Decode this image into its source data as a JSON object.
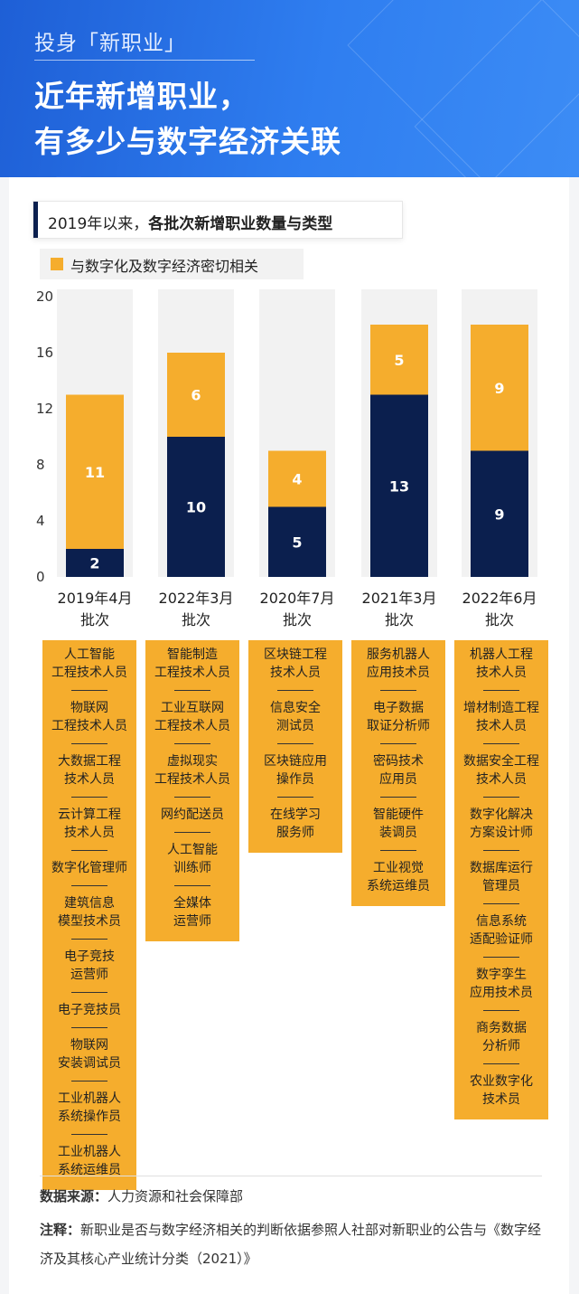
{
  "header": {
    "kicker": "投身「新职业」",
    "title_line1": "近年新增职业，",
    "title_line2": "有多少与数字经济关联"
  },
  "subtitle": {
    "prefix": "2019年以来，",
    "bold": "各批次新增职业数量与类型"
  },
  "legend": {
    "label": "与数字化及数字经济密切相关",
    "color": "#f5ad2d"
  },
  "colors": {
    "digital": "#f5ad2d",
    "other": "#0b1f4e",
    "background_bar": "#f2f2f2",
    "header_blue": "#2a6ee8"
  },
  "chart_data": {
    "type": "bar",
    "stacked": true,
    "categories": [
      "2019年4月\n批次",
      "2022年3月\n批次",
      "2020年7月\n批次",
      "2021年3月\n批次",
      "2022年6月\n批次"
    ],
    "series": [
      {
        "color": "#0b1f4e",
        "values": [
          2,
          10,
          5,
          13,
          9
        ]
      },
      {
        "name": "与数字化及数字经济密切相关",
        "color": "#f5ad2d",
        "values": [
          11,
          6,
          4,
          5,
          9
        ]
      }
    ],
    "ylim": [
      0,
      20
    ],
    "yticks": [
      0,
      4,
      8,
      12,
      16,
      20
    ],
    "grid": false,
    "legend_position": "top-left"
  },
  "occupations": [
    [
      "人工智能\n工程技术人员",
      "物联网\n工程技术人员",
      "大数据工程\n技术人员",
      "云计算工程\n技术人员",
      "数字化管理师",
      "建筑信息\n模型技术员",
      "电子竞技\n运营师",
      "电子竞技员",
      "物联网\n安装调试员",
      "工业机器人\n系统操作员",
      "工业机器人\n系统运维员"
    ],
    [
      "智能制造\n工程技术人员",
      "工业互联网\n工程技术人员",
      "虚拟现实\n工程技术人员",
      "网约配送员",
      "人工智能\n训练师",
      "全媒体\n运营师"
    ],
    [
      "区块链工程\n技术人员",
      "信息安全\n测试员",
      "区块链应用\n操作员",
      "在线学习\n服务师"
    ],
    [
      "服务机器人\n应用技术员",
      "电子数据\n取证分析师",
      "密码技术\n应用员",
      "智能硬件\n装调员",
      "工业视觉\n系统运维员"
    ],
    [
      "机器人工程\n技术人员",
      "增材制造工程\n技术人员",
      "数据安全工程\n技术人员",
      "数字化解决\n方案设计师",
      "数据库运行\n管理员",
      "信息系统\n适配验证师",
      "数字孪生\n应用技术员",
      "商务数据\n分析师",
      "农业数字化\n技术员"
    ]
  ],
  "footer": {
    "source_label": "数据来源：",
    "source_text": "人力资源和社会保障部",
    "note_label": "注释：",
    "note_text": "新职业是否与数字经济相关的判断依据参照人社部对新职业的公告与《数字经济及其核心产业统计分类（2021）》"
  }
}
